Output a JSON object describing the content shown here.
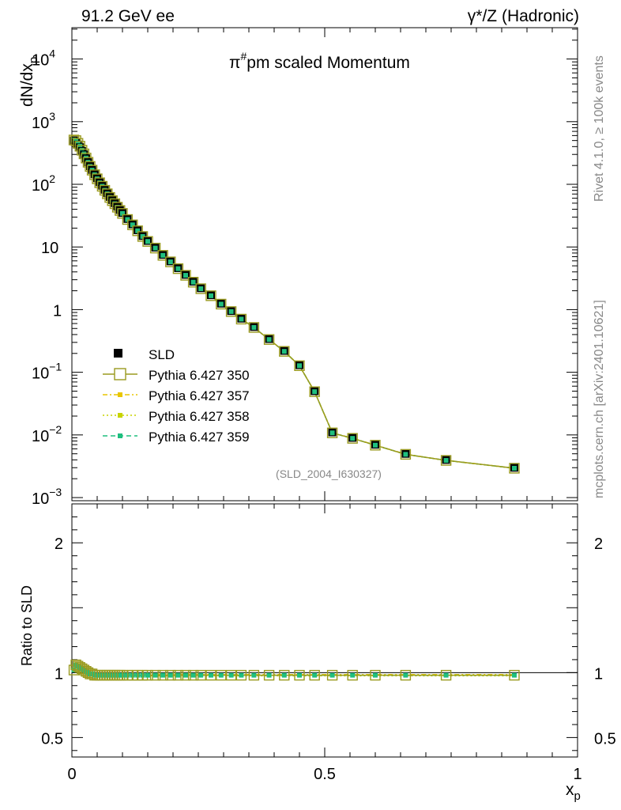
{
  "header": {
    "left": "91.2 GeV ee",
    "right": "γ*/Z (Hadronic)"
  },
  "side_labels": {
    "rivet": "Rivet 4.1.0, ≥ 100k events",
    "mcplots": "mcplots.cern.ch [arXiv:2401.10621]"
  },
  "chart_data": {
    "type": "line",
    "title_prefix": "π",
    "title_sup": "#",
    "title_rest": "pm scaled Momentum",
    "analysis_tag": "(SLD_2004_I630327)",
    "xlabel": "x",
    "xlabel_sub": "p",
    "ylabel": "dN/dx",
    "ylabel_sub": "p",
    "ratio_ylabel": "Ratio to SLD",
    "xlim": [
      0,
      1
    ],
    "ylim_main_log10": [
      -3.05,
      4.5
    ],
    "ylim_ratio": [
      0.35,
      2.3
    ],
    "x_ticks": [
      {
        "v": 0,
        "label": "0"
      },
      {
        "v": 0.5,
        "label": "0.5"
      },
      {
        "v": 1,
        "label": "1"
      }
    ],
    "y_ticks_main": [
      {
        "exp": 4,
        "label": "10",
        "sup": "4"
      },
      {
        "exp": 3,
        "label": "10",
        "sup": "3"
      },
      {
        "exp": 2,
        "label": "10",
        "sup": "2"
      },
      {
        "exp": 1,
        "label": "10",
        "sup": ""
      },
      {
        "exp": 0,
        "label": "1",
        "sup": ""
      },
      {
        "exp": -1,
        "label": "10",
        "sup": "−1"
      },
      {
        "exp": -2,
        "label": "10",
        "sup": "−2"
      },
      {
        "exp": -3,
        "label": "10",
        "sup": "−3"
      }
    ],
    "y_ticks_ratio": [
      {
        "v": 2,
        "label": "2"
      },
      {
        "v": 1,
        "label": "1"
      },
      {
        "v": 0.5,
        "label": "0.5"
      }
    ],
    "legend": [
      {
        "name": "SLD",
        "color": "#000000",
        "style": "data"
      },
      {
        "name": "Pythia 6.427 350",
        "color": "#9a9a1f",
        "style": "open-square"
      },
      {
        "name": "Pythia 6.427 357",
        "color": "#e8c600",
        "style": "dashdot"
      },
      {
        "name": "Pythia 6.427 358",
        "color": "#c8d400",
        "style": "dotted"
      },
      {
        "name": "Pythia 6.427 359",
        "color": "#1fbf7f",
        "style": "dashed"
      }
    ],
    "x": [
      0.004,
      0.008,
      0.012,
      0.016,
      0.02,
      0.024,
      0.028,
      0.032,
      0.036,
      0.04,
      0.045,
      0.05,
      0.055,
      0.06,
      0.065,
      0.07,
      0.075,
      0.08,
      0.085,
      0.09,
      0.095,
      0.1,
      0.11,
      0.12,
      0.13,
      0.14,
      0.15,
      0.165,
      0.18,
      0.195,
      0.21,
      0.225,
      0.24,
      0.255,
      0.275,
      0.295,
      0.315,
      0.335,
      0.36,
      0.39,
      0.42,
      0.45,
      0.48,
      0.515,
      0.555,
      0.6,
      0.66,
      0.74,
      0.875
    ],
    "sld": [
      500,
      470,
      430,
      390,
      340,
      300,
      260,
      225,
      195,
      170,
      145,
      125,
      108,
      95,
      82,
      72,
      63,
      56,
      50,
      44,
      39,
      35,
      28,
      23,
      18.5,
      15,
      12.5,
      9.8,
      7.5,
      5.9,
      4.6,
      3.6,
      2.8,
      2.2,
      1.7,
      1.25,
      0.95,
      0.72,
      0.53,
      0.34,
      0.22,
      0.13,
      0.05,
      0.011,
      0.009,
      0.007,
      0.005,
      0.004,
      0.003
    ],
    "series": [
      {
        "name": "Pythia 6.427 350",
        "ratio": [
          1.02,
          1.06,
          1.05,
          1.04,
          1.03,
          1.02,
          1.01,
          1.0,
          0.99,
          0.99,
          0.98,
          0.98,
          0.98,
          0.98,
          0.98,
          0.98,
          0.98,
          0.98,
          0.98,
          0.98,
          0.98,
          0.98,
          0.98,
          0.98,
          0.98,
          0.98,
          0.98,
          0.98,
          0.98,
          0.98,
          0.98,
          0.98,
          0.98,
          0.98,
          0.98,
          0.98,
          0.98,
          0.98,
          0.98,
          0.98,
          0.98,
          0.98,
          0.98,
          0.98,
          0.98,
          0.98,
          0.98,
          0.98,
          0.98
        ]
      }
    ]
  }
}
